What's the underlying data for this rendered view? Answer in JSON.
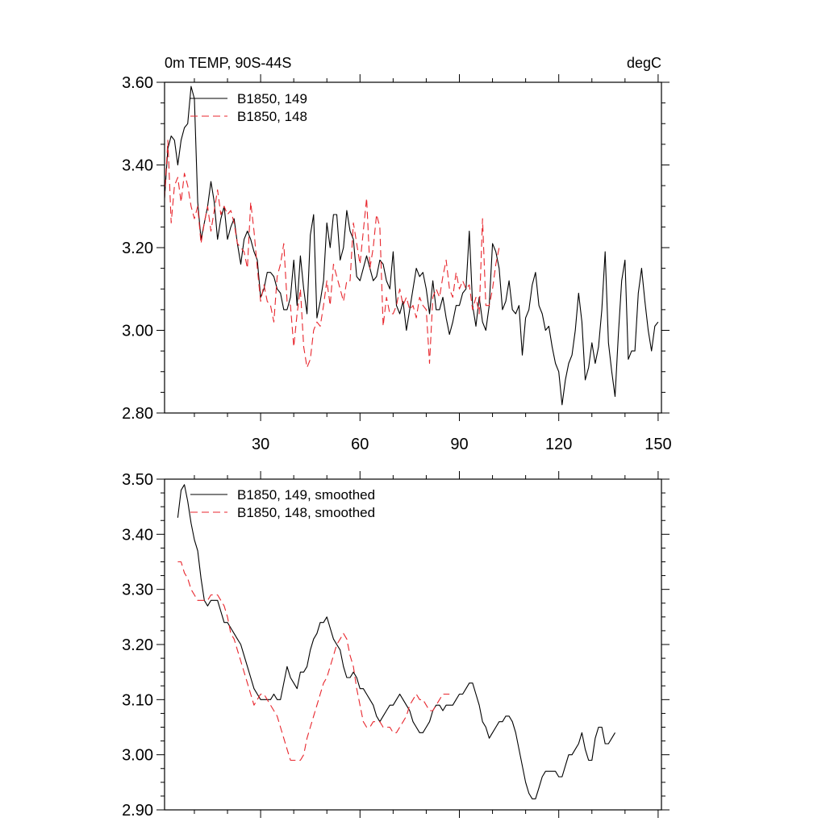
{
  "chart_data": [
    {
      "type": "line",
      "title_left": "0m TEMP, 90S-44S",
      "title_right": "degC",
      "xlim": [
        1,
        151
      ],
      "ylim": [
        2.8,
        3.6
      ],
      "xticks": [
        30,
        60,
        90,
        120,
        150
      ],
      "xtick_labels": [
        "30",
        "60",
        "90",
        "120",
        "150"
      ],
      "yticks": [
        2.8,
        3.0,
        3.2,
        3.4,
        3.6
      ],
      "ytick_labels": [
        "2.80",
        "3.00",
        "3.20",
        "3.40",
        "3.60"
      ],
      "legend_position": "top-left",
      "series": [
        {
          "name": "B1850, 149",
          "color": "#000000",
          "style": "solid",
          "x_start": 1,
          "values": [
            3.32,
            3.44,
            3.47,
            3.46,
            3.4,
            3.46,
            3.49,
            3.5,
            3.59,
            3.56,
            3.31,
            3.22,
            3.26,
            3.3,
            3.36,
            3.31,
            3.22,
            3.27,
            3.3,
            3.22,
            3.25,
            3.27,
            3.21,
            3.16,
            3.22,
            3.24,
            3.22,
            3.19,
            3.17,
            3.08,
            3.1,
            3.14,
            3.14,
            3.13,
            3.1,
            3.09,
            3.05,
            3.05,
            3.08,
            3.17,
            3.06,
            3.18,
            3.1,
            3.04,
            3.23,
            3.28,
            3.03,
            3.07,
            3.12,
            3.26,
            3.2,
            3.28,
            3.28,
            3.17,
            3.2,
            3.29,
            3.24,
            3.22,
            3.13,
            3.12,
            3.15,
            3.18,
            3.15,
            3.12,
            3.13,
            3.17,
            3.16,
            3.12,
            3.1,
            3.19,
            3.06,
            3.04,
            3.07,
            3.0,
            3.05,
            3.1,
            3.15,
            3.13,
            3.14,
            3.1,
            3.04,
            3.12,
            3.05,
            3.05,
            3.08,
            3.03,
            2.99,
            3.02,
            3.06,
            3.06,
            3.09,
            3.1,
            3.24,
            3.06,
            3.01,
            3.08,
            3.02,
            3.0,
            3.06,
            3.21,
            3.19,
            3.15,
            3.05,
            3.07,
            3.12,
            3.05,
            3.04,
            3.06,
            2.94,
            3.03,
            3.05,
            3.11,
            3.14,
            3.06,
            3.04,
            3.0,
            3.01,
            2.96,
            2.92,
            2.9,
            2.82,
            2.88,
            2.92,
            2.94,
            3.0,
            3.09,
            3.02,
            2.88,
            2.91,
            2.97,
            2.92,
            2.96,
            3.05,
            3.19,
            2.97,
            2.9,
            2.84,
            2.99,
            3.12,
            3.17,
            2.93,
            2.95,
            2.95,
            3.09,
            3.15,
            3.07,
            3.0,
            2.95,
            3.01,
            3.02
          ]
        },
        {
          "name": "B1850, 148",
          "color": "#e8262d",
          "style": "dashed",
          "x_start": 1,
          "values": [
            3.32,
            3.46,
            3.26,
            3.35,
            3.37,
            3.31,
            3.38,
            3.35,
            3.3,
            3.27,
            3.3,
            3.21,
            3.26,
            3.3,
            3.24,
            3.29,
            3.34,
            3.28,
            3.3,
            3.28,
            3.29,
            3.26,
            3.21,
            3.2,
            3.19,
            3.15,
            3.31,
            3.24,
            3.15,
            3.07,
            3.11,
            3.07,
            3.06,
            3.02,
            3.13,
            3.16,
            3.21,
            3.07,
            3.06,
            2.96,
            3.04,
            3.1,
            2.96,
            2.91,
            2.93,
            3.0,
            3.02,
            3.01,
            3.06,
            3.12,
            3.06,
            3.16,
            3.13,
            3.1,
            3.07,
            3.12,
            3.12,
            3.26,
            3.21,
            3.16,
            3.24,
            3.32,
            3.15,
            3.2,
            3.28,
            3.25,
            3.01,
            3.08,
            3.04,
            3.04,
            3.06,
            3.1,
            3.06,
            3.08,
            3.05,
            3.06,
            3.03,
            3.08,
            3.06,
            3.05,
            2.92,
            3.08,
            3.1,
            3.08,
            3.13,
            3.17,
            3.1,
            3.08,
            3.14,
            3.1,
            3.12,
            3.1,
            3.11,
            3.05,
            3.08,
            3.04,
            3.27,
            3.06,
            3.06,
            3.1,
            3.16,
            3.2
          ]
        }
      ]
    },
    {
      "type": "line",
      "xlim": [
        1,
        151
      ],
      "ylim": [
        2.9,
        3.5
      ],
      "xticks": [
        30,
        60,
        90,
        120,
        150
      ],
      "yticks": [
        2.9,
        3.0,
        3.1,
        3.2,
        3.3,
        3.4,
        3.5
      ],
      "ytick_labels": [
        "2.90",
        "3.00",
        "3.10",
        "3.20",
        "3.30",
        "3.40",
        "3.50"
      ],
      "legend_position": "top-left",
      "series": [
        {
          "name": "B1850, 149, smoothed",
          "color": "#000000",
          "style": "solid",
          "x_start": 5,
          "values": [
            3.43,
            3.48,
            3.49,
            3.46,
            3.42,
            3.39,
            3.37,
            3.32,
            3.28,
            3.27,
            3.28,
            3.28,
            3.28,
            3.26,
            3.24,
            3.24,
            3.23,
            3.22,
            3.21,
            3.2,
            3.18,
            3.16,
            3.14,
            3.12,
            3.11,
            3.1,
            3.1,
            3.1,
            3.1,
            3.11,
            3.1,
            3.1,
            3.13,
            3.16,
            3.14,
            3.13,
            3.12,
            3.15,
            3.15,
            3.16,
            3.19,
            3.21,
            3.22,
            3.24,
            3.24,
            3.25,
            3.23,
            3.21,
            3.2,
            3.19,
            3.16,
            3.14,
            3.14,
            3.15,
            3.14,
            3.12,
            3.12,
            3.11,
            3.1,
            3.09,
            3.07,
            3.06,
            3.07,
            3.08,
            3.09,
            3.09,
            3.1,
            3.11,
            3.1,
            3.09,
            3.08,
            3.06,
            3.05,
            3.04,
            3.04,
            3.05,
            3.06,
            3.08,
            3.09,
            3.09,
            3.08,
            3.09,
            3.09,
            3.09,
            3.1,
            3.11,
            3.11,
            3.12,
            3.13,
            3.13,
            3.11,
            3.09,
            3.06,
            3.05,
            3.03,
            3.04,
            3.05,
            3.06,
            3.06,
            3.07,
            3.07,
            3.06,
            3.04,
            3.01,
            2.98,
            2.95,
            2.93,
            2.92,
            2.92,
            2.94,
            2.96,
            2.97,
            2.97,
            2.97,
            2.97,
            2.96,
            2.96,
            2.98,
            3.0,
            3.0,
            3.01,
            3.02,
            3.04,
            3.01,
            2.99,
            2.99,
            3.03,
            3.05,
            3.05,
            3.02,
            3.02,
            3.03,
            3.04
          ]
        },
        {
          "name": "B1850, 148, smoothed",
          "color": "#e8262d",
          "style": "dashed",
          "x_start": 5,
          "values": [
            3.35,
            3.35,
            3.33,
            3.32,
            3.3,
            3.29,
            3.28,
            3.28,
            3.28,
            3.28,
            3.29,
            3.29,
            3.29,
            3.28,
            3.27,
            3.25,
            3.22,
            3.21,
            3.19,
            3.17,
            3.15,
            3.13,
            3.11,
            3.09,
            3.1,
            3.11,
            3.11,
            3.1,
            3.09,
            3.08,
            3.07,
            3.05,
            3.03,
            3.01,
            2.99,
            2.99,
            2.99,
            2.99,
            3.0,
            3.03,
            3.05,
            3.07,
            3.09,
            3.11,
            3.13,
            3.14,
            3.16,
            3.18,
            3.2,
            3.21,
            3.22,
            3.21,
            3.18,
            3.16,
            3.12,
            3.09,
            3.06,
            3.05,
            3.05,
            3.06,
            3.06,
            3.06,
            3.05,
            3.05,
            3.05,
            3.04,
            3.04,
            3.05,
            3.06,
            3.07,
            3.09,
            3.1,
            3.11,
            3.1,
            3.1,
            3.09,
            3.08,
            3.08,
            3.09,
            3.1,
            3.11,
            3.11,
            3.11
          ]
        }
      ]
    }
  ]
}
